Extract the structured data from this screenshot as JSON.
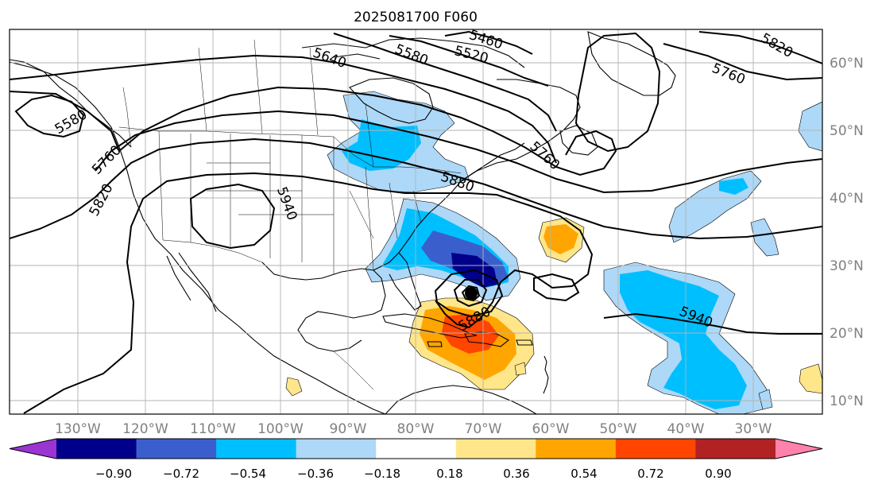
{
  "title": "2025081700 F060",
  "map": {
    "lon_labels": [
      "130°W",
      "120°W",
      "110°W",
      "100°W",
      "90°W",
      "80°W",
      "70°W",
      "60°W",
      "50°W",
      "40°W",
      "30°W"
    ],
    "lat_labels": [
      "10°N",
      "20°N",
      "30°N",
      "40°N",
      "50°N",
      "60°N"
    ],
    "tick_label_color": "#808080",
    "gridline_color": "#b3b3b3",
    "contour_labels": [
      "5460",
      "5520",
      "5580",
      "5580",
      "5640",
      "5760",
      "5760",
      "5760",
      "5820",
      "5820",
      "5880",
      "5880",
      "5940",
      "5940"
    ]
  },
  "colorbar": {
    "tick_labels": [
      "−0.90",
      "−0.72",
      "−0.54",
      "−0.36",
      "−0.18",
      "0.18",
      "0.36",
      "0.54",
      "0.72",
      "0.90"
    ],
    "colors": [
      "#9a35d1",
      "#00008b",
      "#3a5fcd",
      "#00bfff",
      "#add8f7",
      "#ffffff",
      "#ffe68a",
      "#ffa500",
      "#ff4500",
      "#b22222",
      "#ff82ab"
    ]
  }
}
